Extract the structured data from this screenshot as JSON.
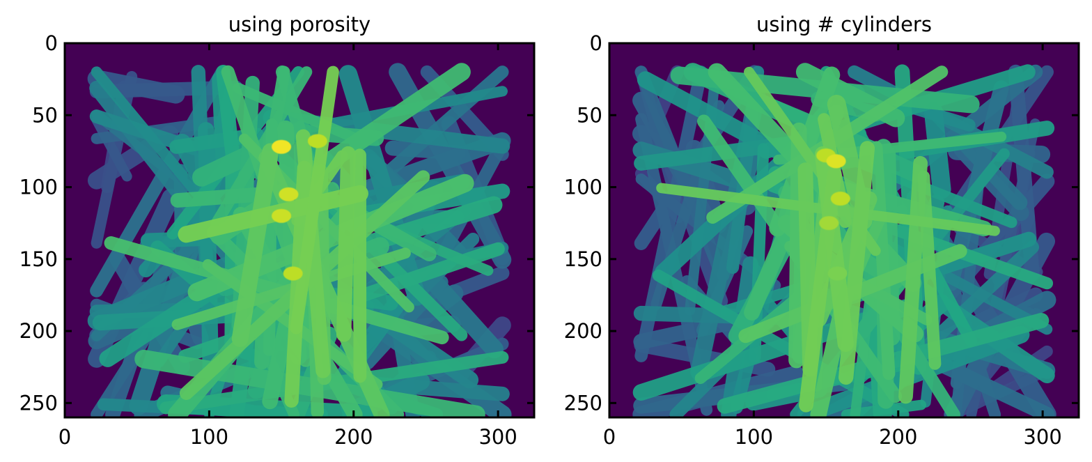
{
  "figure": {
    "colormap": "viridis",
    "colors": {
      "background": "#440154",
      "low": "#3b528b",
      "mid": "#21918c",
      "high": "#5ec962",
      "peak": "#fde725",
      "frame": "#000000"
    }
  },
  "chart_data": [
    {
      "type": "heatmap",
      "title": "using porosity",
      "xlabel": "",
      "ylabel": "",
      "xlim": [
        0,
        325
      ],
      "ylim": [
        260,
        0
      ],
      "xticks": [
        0,
        100,
        200,
        300
      ],
      "yticks": [
        0,
        50,
        100,
        150,
        200,
        250
      ],
      "grid": false,
      "description_values": {
        "image_height": 260,
        "image_width": 325
      }
    },
    {
      "type": "heatmap",
      "title": "using # cylinders",
      "xlabel": "",
      "ylabel": "",
      "xlim": [
        0,
        325
      ],
      "ylim": [
        260,
        0
      ],
      "xticks": [
        0,
        100,
        200,
        300
      ],
      "yticks": [
        0,
        50,
        100,
        150,
        200,
        250
      ],
      "grid": false,
      "description_values": {
        "image_height": 260,
        "image_width": 325
      }
    }
  ]
}
